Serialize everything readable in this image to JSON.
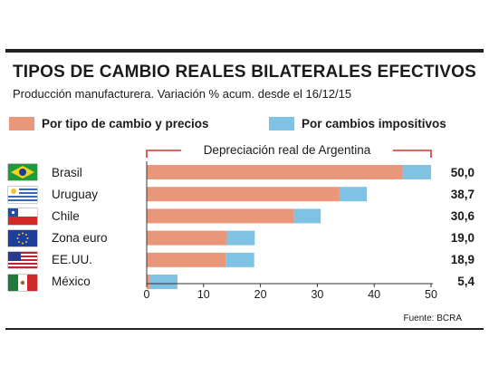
{
  "title": "TIPOS DE CAMBIO REALES BILATERALES EFECTIVOS",
  "subtitle": "Producción manufacturera. Variación % acum. desde el 16/12/15",
  "bracket_label": "Depreciación real de Argentina",
  "source": "Fuente: BCRA",
  "colors": {
    "prices": "#E9977A",
    "taxes": "#7FC2E4"
  },
  "chart_data": {
    "type": "bar",
    "orientation": "horizontal",
    "stacked": true,
    "title": "TIPOS DE CAMBIO REALES BILATERALES EFECTIVOS",
    "subtitle": "Producción manufacturera. Variación % acum. desde el 16/12/15",
    "categories": [
      "Brasil",
      "Uruguay",
      "Chile",
      "Zona euro",
      "EE.UU.",
      "México"
    ],
    "flags": [
      "brazil-flag",
      "uruguay-flag",
      "chile-flag",
      "eu-flag",
      "usa-flag",
      "mexico-flag"
    ],
    "series": [
      {
        "name": "Por tipo de cambio y precios",
        "values": [
          45.0,
          33.9,
          25.9,
          14.1,
          13.9,
          0.5
        ]
      },
      {
        "name": "Por cambios impositivos",
        "values": [
          5.0,
          4.8,
          4.7,
          4.9,
          5.0,
          4.9
        ]
      }
    ],
    "totals": [
      "50,0",
      "38,7",
      "30,6",
      "19,0",
      "18,9",
      "5,4"
    ],
    "xlim": [
      0,
      50
    ],
    "xticks": [
      "0",
      "10",
      "20",
      "30",
      "40",
      "50"
    ],
    "grid": false,
    "legend_position": "top"
  }
}
